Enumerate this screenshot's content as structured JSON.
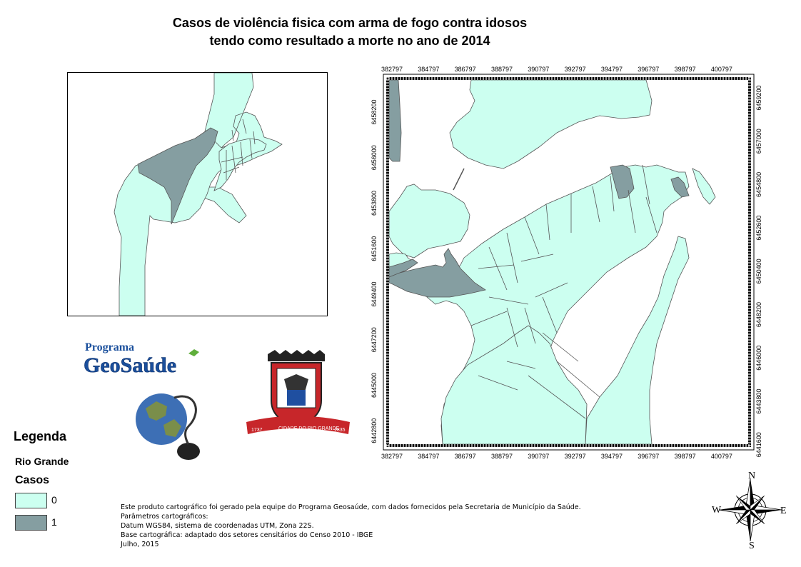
{
  "title": {
    "line1": "Casos de violência fisica com arma de fogo contra idosos",
    "line2": "tendo como resultado a morte no ano de 2014"
  },
  "legend": {
    "heading": "Legenda",
    "layer_name": "Rio Grande",
    "field_name": "Casos",
    "classes": [
      {
        "label": "0",
        "color": "#ccfff0"
      },
      {
        "label": "1",
        "color": "#859ea1"
      }
    ]
  },
  "grid": {
    "x_labels": [
      "382797",
      "384797",
      "386797",
      "388797",
      "390797",
      "392797",
      "394797",
      "396797",
      "398797",
      "400797"
    ],
    "y_labels_left": [
      "6458200",
      "6456000",
      "6453800",
      "6451600",
      "6449400",
      "6447200",
      "6445000",
      "6442800"
    ],
    "y_labels_right": [
      "6459200",
      "6457000",
      "6454800",
      "6452600",
      "6450400",
      "6448200",
      "6446000",
      "6443800",
      "6441600"
    ]
  },
  "logos": {
    "programa": "Programa",
    "geosaude": "GeoSaúde",
    "city_banner": "CIDADE DO RIO GRANDE",
    "year_left": "1737",
    "year_right": "1835"
  },
  "compass": {
    "n": "N",
    "s": "S",
    "e": "E",
    "w": "W"
  },
  "credits": {
    "line1": "Este produto cartográfico foi gerado pela equipe do Programa Geosaúde, com dados fornecidos pela Secretaria de Município da Saúde.",
    "line2": "Parâmetros cartográficos:",
    "line3": "Datum WGS84, sistema de coordenadas UTM, Zona 22S.",
    "line4": "Base cartográfica: adaptado dos setores censitários do Censo 2010 - IBGE",
    "line5": "Julho, 2015"
  },
  "colors": {
    "zero": "#ccfff0",
    "one": "#859ea1",
    "outline": "#555555"
  }
}
